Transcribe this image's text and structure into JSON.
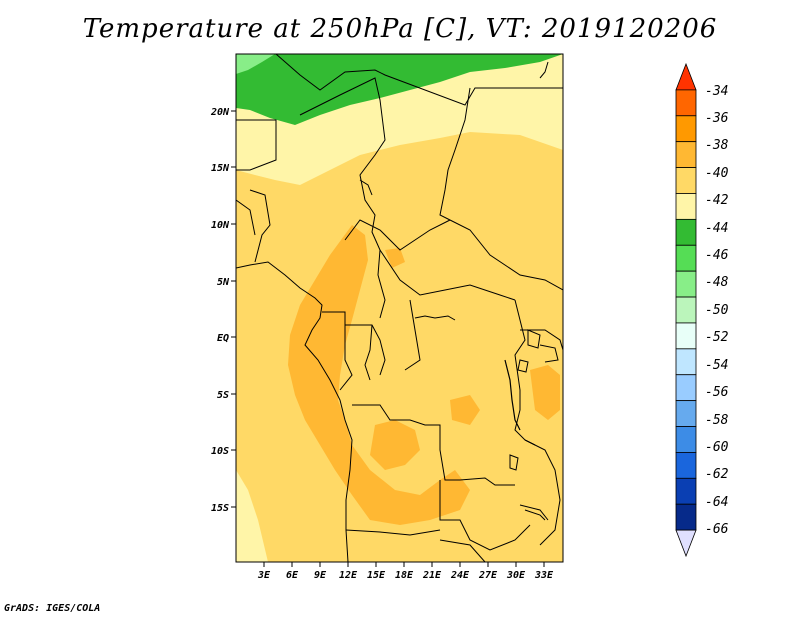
{
  "title": "Temperature at 250hPa [C], VT: 2019120206",
  "credit": "GrADS: IGES/COLA",
  "map": {
    "lat_labels": [
      "20N",
      "15N",
      "10N",
      "5N",
      "EQ",
      "5S",
      "10S",
      "15S"
    ],
    "lon_labels": [
      "3E",
      "6E",
      "9E",
      "12E",
      "15E",
      "18E",
      "21E",
      "24E",
      "27E",
      "30E",
      "33E"
    ]
  },
  "colorbar": {
    "labels": [
      "-34",
      "-36",
      "-38",
      "-40",
      "-42",
      "-44",
      "-46",
      "-48",
      "-50",
      "-52",
      "-54",
      "-56",
      "-58",
      "-60",
      "-62",
      "-64",
      "-66"
    ],
    "colors": [
      "#ff3300",
      "#ff6600",
      "#ff9900",
      "#ffb833",
      "#ffd966",
      "#fff5a8",
      "#33bb33",
      "#55dd55",
      "#88ee88",
      "#bbf5bb",
      "#e8fff8",
      "#bfe6ff",
      "#99ccff",
      "#66aaee",
      "#3d8ce6",
      "#1a66dd",
      "#0a3fb3",
      "#062a8a",
      "#e0e0ff"
    ]
  },
  "legend_colors": {
    "sea_temp_band": "#ffd966",
    "warm_band": "#ffb833",
    "cool_band": "#fff5a8",
    "green_band": "#33bb33"
  }
}
